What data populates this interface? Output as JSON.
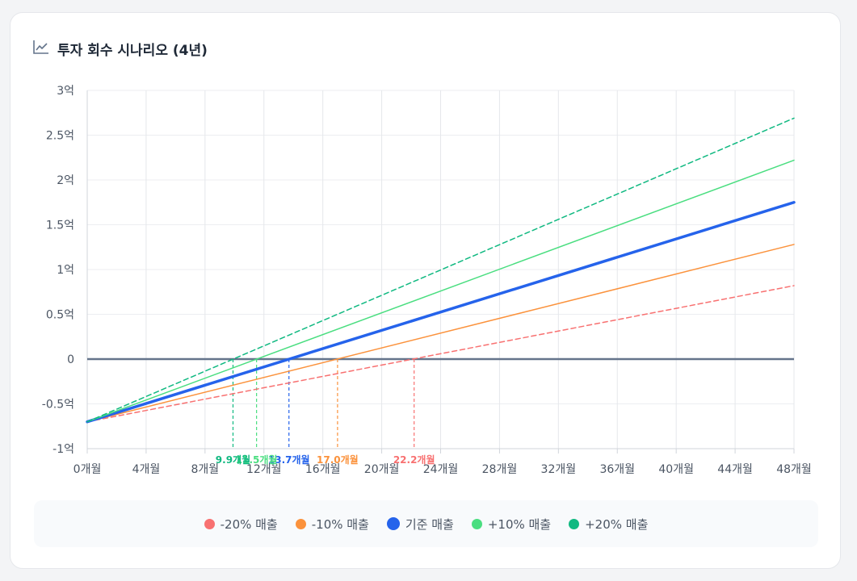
{
  "card": {
    "title": "투자 회수 시나리오 (4년)",
    "icon": "line-chart-icon"
  },
  "chart_data": {
    "type": "line",
    "xlabel": "",
    "ylabel": "",
    "xlim": [
      0,
      48
    ],
    "ylim": [
      -1,
      3
    ],
    "x_ticks": [
      {
        "value": 0,
        "label": "0개월"
      },
      {
        "value": 4,
        "label": "4개월"
      },
      {
        "value": 8,
        "label": "8개월"
      },
      {
        "value": 12,
        "label": "12개월"
      },
      {
        "value": 16,
        "label": "16개월"
      },
      {
        "value": 20,
        "label": "20개월"
      },
      {
        "value": 24,
        "label": "24개월"
      },
      {
        "value": 28,
        "label": "28개월"
      },
      {
        "value": 32,
        "label": "32개월"
      },
      {
        "value": 36,
        "label": "36개월"
      },
      {
        "value": 40,
        "label": "40개월"
      },
      {
        "value": 44,
        "label": "44개월"
      },
      {
        "value": 48,
        "label": "48개월"
      }
    ],
    "y_ticks": [
      {
        "value": 3,
        "label": "3억"
      },
      {
        "value": 2.5,
        "label": "2.5억"
      },
      {
        "value": 2,
        "label": "2억"
      },
      {
        "value": 1.5,
        "label": "1.5억"
      },
      {
        "value": 1,
        "label": "1억"
      },
      {
        "value": 0.5,
        "label": "0.5억"
      },
      {
        "value": 0,
        "label": "0"
      },
      {
        "value": -0.5,
        "label": "-0.5억"
      },
      {
        "value": -1,
        "label": "-1억"
      }
    ],
    "grid": true,
    "zero_line_color": "#64748b",
    "series": [
      {
        "name": "-20% 매출",
        "color": "#f87171",
        "dash": true,
        "width": 1.5,
        "x": [
          0,
          48
        ],
        "y": [
          -0.7,
          0.82
        ],
        "breakeven": 22.2,
        "breakeven_label": "22.2개월"
      },
      {
        "name": "-10% 매출",
        "color": "#fb923c",
        "dash": false,
        "width": 1.5,
        "x": [
          0,
          48
        ],
        "y": [
          -0.7,
          1.28
        ],
        "breakeven": 17.0,
        "breakeven_label": "17.0개월"
      },
      {
        "name": "기준 매출",
        "color": "#2563eb",
        "dash": false,
        "width": 3.5,
        "x": [
          0,
          48
        ],
        "y": [
          -0.7,
          1.75
        ],
        "breakeven": 13.7,
        "breakeven_label": "13.7개월"
      },
      {
        "name": "+10% 매출",
        "color": "#4ade80",
        "dash": false,
        "width": 1.5,
        "x": [
          0,
          48
        ],
        "y": [
          -0.7,
          2.22
        ],
        "breakeven": 11.5,
        "breakeven_label": "11.5개월"
      },
      {
        "name": "+20% 매출",
        "color": "#10b981",
        "dash": true,
        "width": 1.5,
        "x": [
          0,
          48
        ],
        "y": [
          -0.7,
          2.69
        ],
        "breakeven": 9.9,
        "breakeven_label": "9.9개월"
      }
    ],
    "legend": "bottom"
  }
}
